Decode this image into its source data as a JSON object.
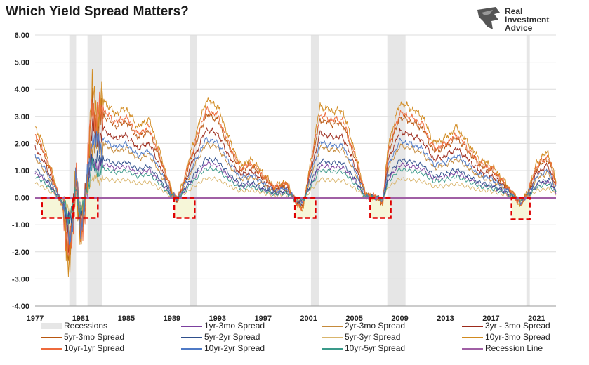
{
  "header": {
    "title": "Which Yield Spread Matters?"
  },
  "logo": {
    "line1": "Real",
    "line2": "Investment",
    "line3": "Advice"
  },
  "colors": {
    "recession": "#e6e6e6",
    "recession_line": "#a05fa5",
    "highlight_border": "#e00000",
    "highlight_fill": "#f6f6d8"
  },
  "chart_data": {
    "type": "line",
    "title": "Which Yield Spread Matters?",
    "xlabel": "",
    "ylabel": "",
    "xlim": [
      1977,
      2022.7
    ],
    "ylim": [
      -4,
      6
    ],
    "x_ticks": [
      "1977",
      "1981",
      "1985",
      "1989",
      "1993",
      "1997",
      "2001",
      "2005",
      "2009",
      "2013",
      "2017",
      "2021"
    ],
    "x_tick_values": [
      1977,
      1981,
      1985,
      1989,
      1993,
      1997,
      2001,
      2005,
      2009,
      2013,
      2017,
      2021
    ],
    "y_ticks": [
      "6.00",
      "5.00",
      "4.00",
      "3.00",
      "2.00",
      "1.00",
      "0.00",
      "-1.00",
      "-2.00",
      "-3.00",
      "-4.00"
    ],
    "y_tick_values": [
      6,
      5,
      4,
      3,
      2,
      1,
      0,
      -1,
      -2,
      -3,
      -4
    ],
    "grid": true,
    "legend_position": "bottom",
    "recessions": [
      [
        1980.0,
        1980.6
      ],
      [
        1981.6,
        1982.9
      ],
      [
        1990.6,
        1991.2
      ],
      [
        2001.2,
        2001.9
      ],
      [
        2007.9,
        2009.5
      ],
      [
        2020.1,
        2020.4
      ]
    ],
    "highlight_regions": [
      {
        "x": [
          1977.6,
          1980.3
        ],
        "y": [
          -0.75,
          0.0
        ]
      },
      {
        "x": [
          1980.4,
          1982.5
        ],
        "y": [
          -0.75,
          0.0
        ]
      },
      {
        "x": [
          1989.2,
          1991.0
        ],
        "y": [
          -0.75,
          0.0
        ]
      },
      {
        "x": [
          1999.8,
          2001.6
        ],
        "y": [
          -0.75,
          0.0
        ]
      },
      {
        "x": [
          2006.4,
          2008.2
        ],
        "y": [
          -0.75,
          0.0
        ]
      },
      {
        "x": [
          2018.8,
          2020.4
        ],
        "y": [
          -0.8,
          0.0
        ]
      }
    ],
    "recession_line_value": 0,
    "series": [
      {
        "name": "1yr-3mo Spread",
        "color": "#7b3f9e",
        "scale": 0.35,
        "shift": 0.0,
        "phase": 0.3
      },
      {
        "name": "2yr-3mo Spread",
        "color": "#c58a3b",
        "scale": 0.55,
        "shift": 0.0,
        "phase": 0.7
      },
      {
        "name": "3yr - 3mo Spread",
        "color": "#9c2a1b",
        "scale": 0.7,
        "shift": 0.0,
        "phase": 1.1
      },
      {
        "name": "5yr-3mo Spread",
        "color": "#b8560f",
        "scale": 0.85,
        "shift": 0.0,
        "phase": 1.5
      },
      {
        "name": "5yr-2yr Spread",
        "color": "#2e4f8c",
        "scale": 0.4,
        "shift": 0.0,
        "phase": 1.9
      },
      {
        "name": "5yr-3yr Spread",
        "color": "#d9b56c",
        "scale": 0.2,
        "shift": 0.0,
        "phase": 2.3
      },
      {
        "name": "10yr-3mo Spread",
        "color": "#d18a1f",
        "scale": 1.0,
        "shift": 0.0,
        "phase": 2.7
      },
      {
        "name": "10yr-1yr Spread",
        "color": "#ee6a3c",
        "scale": 0.9,
        "shift": 0.0,
        "phase": 3.1
      },
      {
        "name": "10yr-2yr Spread",
        "color": "#4f7ac6",
        "scale": 0.6,
        "shift": 0.0,
        "phase": 3.5
      },
      {
        "name": "10yr-5yr Spread",
        "color": "#3a9a8a",
        "scale": 0.3,
        "shift": 0.0,
        "phase": 3.9
      }
    ],
    "base_curve": {
      "x": [
        1977.0,
        1977.5,
        1978.0,
        1978.5,
        1979.0,
        1979.5,
        1980.0,
        1980.3,
        1980.6,
        1981.0,
        1981.3,
        1981.7,
        1982.0,
        1982.5,
        1983.0,
        1984.0,
        1985.0,
        1986.0,
        1987.0,
        1988.0,
        1989.0,
        1989.5,
        1990.0,
        1991.0,
        1992.0,
        1993.0,
        1994.0,
        1995.0,
        1996.0,
        1997.0,
        1998.0,
        1999.0,
        2000.0,
        2000.5,
        2001.0,
        2002.0,
        2003.0,
        2004.0,
        2005.0,
        2006.0,
        2007.0,
        2007.5,
        2008.0,
        2009.0,
        2010.0,
        2011.0,
        2012.0,
        2013.0,
        2014.0,
        2015.0,
        2016.0,
        2017.0,
        2018.0,
        2019.0,
        2019.6,
        2020.3,
        2021.0,
        2022.0,
        2022.7
      ],
      "y": [
        2.6,
        2.2,
        1.6,
        0.9,
        0.2,
        -0.6,
        -2.5,
        -1.2,
        1.2,
        -1.8,
        -0.6,
        1.8,
        3.8,
        3.2,
        3.6,
        3.1,
        3.3,
        2.6,
        2.9,
        1.6,
        0.2,
        -0.1,
        0.6,
        2.2,
        3.6,
        3.4,
        2.2,
        1.2,
        1.4,
        0.9,
        0.4,
        0.6,
        -0.3,
        -0.4,
        0.9,
        3.4,
        3.2,
        3.2,
        1.8,
        0.1,
        0.0,
        -0.2,
        2.0,
        3.5,
        3.3,
        3.0,
        2.0,
        2.2,
        2.6,
        2.0,
        1.4,
        1.2,
        0.7,
        0.1,
        -0.3,
        0.3,
        1.3,
        1.7,
        0.6
      ]
    }
  },
  "legend": [
    {
      "label": "Recessions",
      "type": "box",
      "color": "#e6e6e6"
    },
    {
      "label": "1yr-3mo Spread",
      "type": "line",
      "color": "#7b3f9e"
    },
    {
      "label": "2yr-3mo Spread",
      "type": "line",
      "color": "#c58a3b"
    },
    {
      "label": "3yr - 3mo Spread",
      "type": "line",
      "color": "#9c2a1b"
    },
    {
      "label": "5yr-3mo Spread",
      "type": "line",
      "color": "#b8560f"
    },
    {
      "label": "5yr-2yr Spread",
      "type": "line",
      "color": "#2e4f8c"
    },
    {
      "label": "5yr-3yr Spread",
      "type": "line",
      "color": "#d9b56c"
    },
    {
      "label": "10yr-3mo Spread",
      "type": "line",
      "color": "#d18a1f"
    },
    {
      "label": "10yr-1yr Spread",
      "type": "line",
      "color": "#ee6a3c"
    },
    {
      "label": "10yr-2yr Spread",
      "type": "line",
      "color": "#4f7ac6"
    },
    {
      "label": "10yr-5yr Spread",
      "type": "line",
      "color": "#3a9a8a"
    },
    {
      "label": "Recession Line",
      "type": "line",
      "color": "#a05fa5"
    }
  ]
}
